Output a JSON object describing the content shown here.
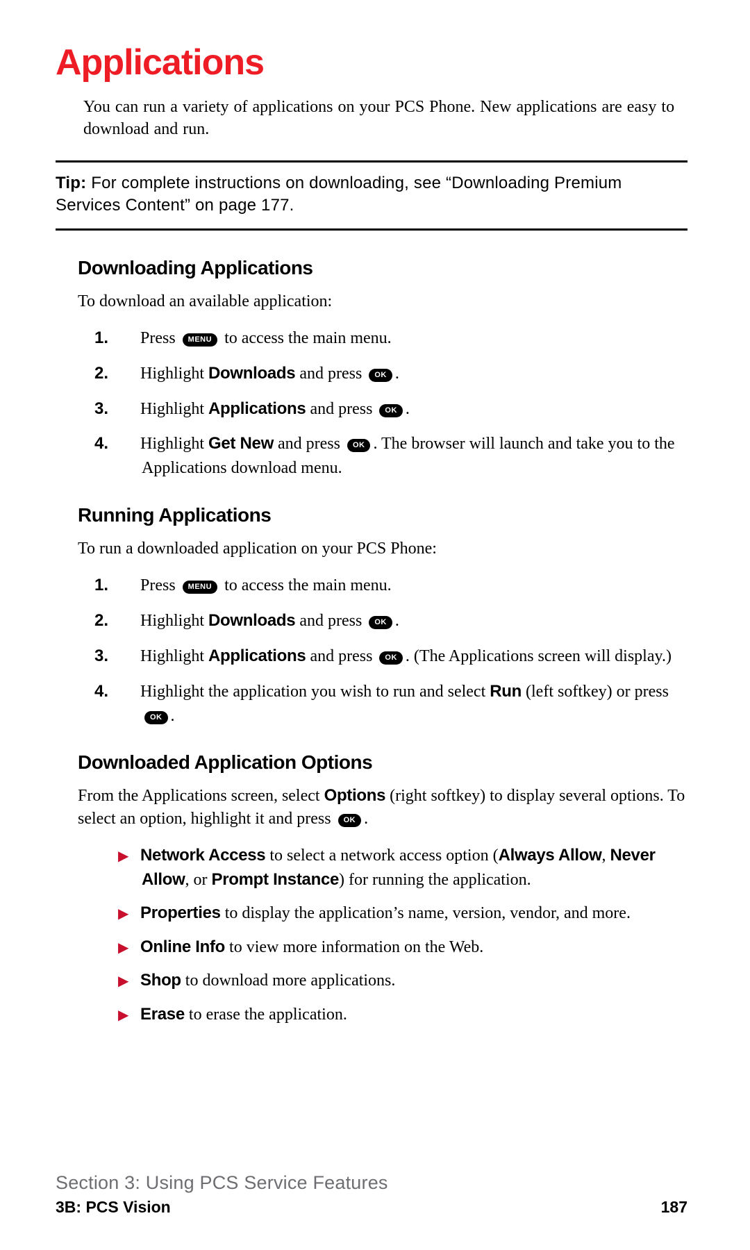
{
  "title": "Applications",
  "intro": "You can run a variety of applications on your PCS Phone. New applications are easy to download and run.",
  "tip": {
    "label": "Tip:",
    "text": " For complete instructions on downloading, see “Downloading Premium Services Content” on page 177."
  },
  "keys": {
    "menu": "MENU",
    "ok": "OK"
  },
  "downloading": {
    "heading": "Downloading Applications",
    "lead": "To download an available application:",
    "steps": {
      "n1": "1.",
      "s1a": "Press ",
      "s1b": " to access the main menu.",
      "n2": "2.",
      "s2a": "Highlight ",
      "s2b": "Downloads",
      "s2c": " and press ",
      "s2d": ".",
      "n3": "3.",
      "s3a": "Highlight ",
      "s3b": "Applications",
      "s3c": " and press ",
      "s3d": ".",
      "n4": "4.",
      "s4a": "Highlight ",
      "s4b": "Get New",
      "s4c": " and press ",
      "s4d": ". The browser will launch and take you to the Applications download menu."
    }
  },
  "running": {
    "heading": "Running Applications",
    "lead": "To run a downloaded application on your PCS Phone:",
    "steps": {
      "n1": "1.",
      "s1a": "Press ",
      "s1b": " to access the main menu.",
      "n2": "2.",
      "s2a": "Highlight ",
      "s2b": "Downloads",
      "s2c": " and press ",
      "s2d": ".",
      "n3": "3.",
      "s3a": "Highlight ",
      "s3b": "Applications",
      "s3c": " and press ",
      "s3d": ". (The Applications screen will display.)",
      "n4": "4.",
      "s4a": "Highlight the application you wish to run and select ",
      "s4b": "Run",
      "s4c": " (left softkey) or press ",
      "s4d": "."
    }
  },
  "options": {
    "heading": "Downloaded Application Options",
    "lead_a": "From the Applications screen, select ",
    "lead_b": "Options",
    "lead_c": " (right softkey) to display several options. To select an option, highlight it and press ",
    "lead_d": ".",
    "items": {
      "i1a": "Network Access",
      "i1b": " to select a network access option (",
      "i1c": "Always Allow",
      "i1d": ", ",
      "i1e": "Never Allow",
      "i1f": ", or ",
      "i1g": "Prompt Instance",
      "i1h": ") for running the application.",
      "i2a": "Properties",
      "i2b": " to display the application’s name, version, vendor, and more.",
      "i3a": "Online Info",
      "i3b": " to view more information on the Web.",
      "i4a": "Shop",
      "i4b": " to download more applications.",
      "i5a": "Erase",
      "i5b": " to erase the application."
    }
  },
  "footer": {
    "section": "Section 3: Using PCS Service Features",
    "sub": "3B: PCS Vision",
    "page": "187"
  }
}
